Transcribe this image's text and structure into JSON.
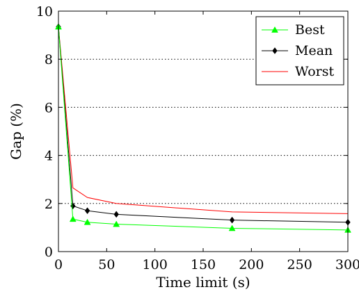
{
  "chart_data": {
    "type": "line",
    "title": "",
    "xlabel": "Time limit (s)",
    "ylabel": "Gap (%)",
    "xlim": [
      0,
      300
    ],
    "ylim": [
      0,
      10
    ],
    "x_ticks": [
      0,
      50,
      100,
      150,
      200,
      250,
      300
    ],
    "y_ticks": [
      0,
      2,
      4,
      6,
      8,
      10
    ],
    "grid": "horizontal dotted",
    "legend_position": "top-right",
    "x": [
      0,
      15,
      30,
      60,
      180,
      300
    ],
    "series": [
      {
        "name": "Best",
        "color": "#00ff00",
        "marker": "triangle",
        "values": [
          9.35,
          1.35,
          1.22,
          1.14,
          0.97,
          0.9
        ]
      },
      {
        "name": "Mean",
        "color": "#000000",
        "marker": "diamond",
        "values": [
          9.35,
          1.9,
          1.7,
          1.55,
          1.31,
          1.22
        ]
      },
      {
        "name": "Worst",
        "color": "#ff0000",
        "marker": "none",
        "values": [
          9.35,
          2.65,
          2.25,
          2.0,
          1.65,
          1.58
        ]
      }
    ]
  }
}
